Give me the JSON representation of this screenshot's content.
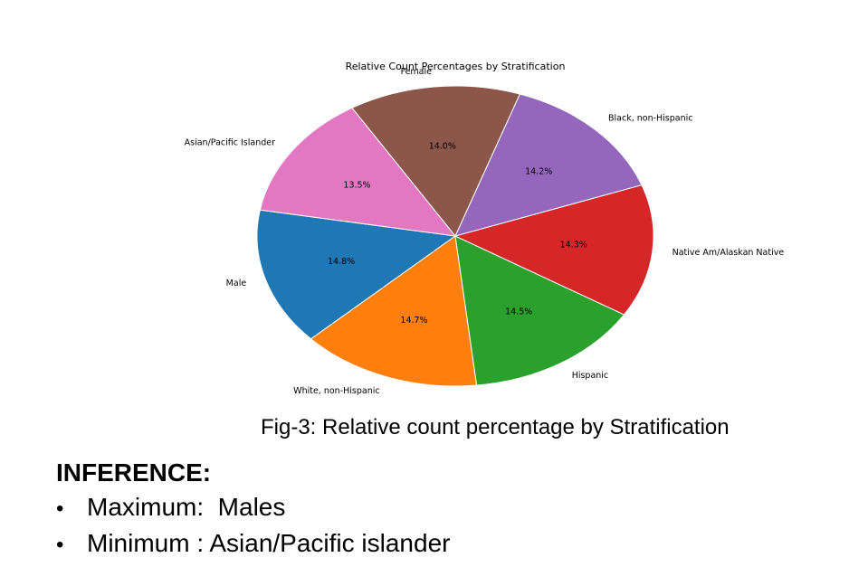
{
  "chart_data": {
    "type": "pie",
    "title": "Relative Count Percentages by Stratification",
    "slices": [
      {
        "label": "Male",
        "percent": 14.8,
        "pct_label": "14.8%",
        "color": "#1f77b4"
      },
      {
        "label": "White, non-Hispanic",
        "percent": 14.7,
        "pct_label": "14.7%",
        "color": "#ff7f0e"
      },
      {
        "label": "Hispanic",
        "percent": 14.5,
        "pct_label": "14.5%",
        "color": "#2ca02c"
      },
      {
        "label": "Native Am/Alaskan Native",
        "percent": 14.3,
        "pct_label": "14.3%",
        "color": "#d62728"
      },
      {
        "label": "Black, non-Hispanic",
        "percent": 14.2,
        "pct_label": "14.2%",
        "color": "#9467bd"
      },
      {
        "label": "Female",
        "percent": 14.0,
        "pct_label": "14.0%",
        "color": "#8c564b"
      },
      {
        "label": "Asian/Pacific Islander",
        "percent": 13.5,
        "pct_label": "13.5%",
        "color": "#e377c2"
      }
    ],
    "start_angle_deg": 170,
    "direction": "counterclockwise"
  },
  "caption": "Fig-3: Relative count percentage by Stratification",
  "inference": {
    "heading": "INFERENCE:",
    "bullet_symbol": "•",
    "items": [
      "Maximum:  Males",
      "Minimum : Asian/Pacific islander"
    ]
  }
}
